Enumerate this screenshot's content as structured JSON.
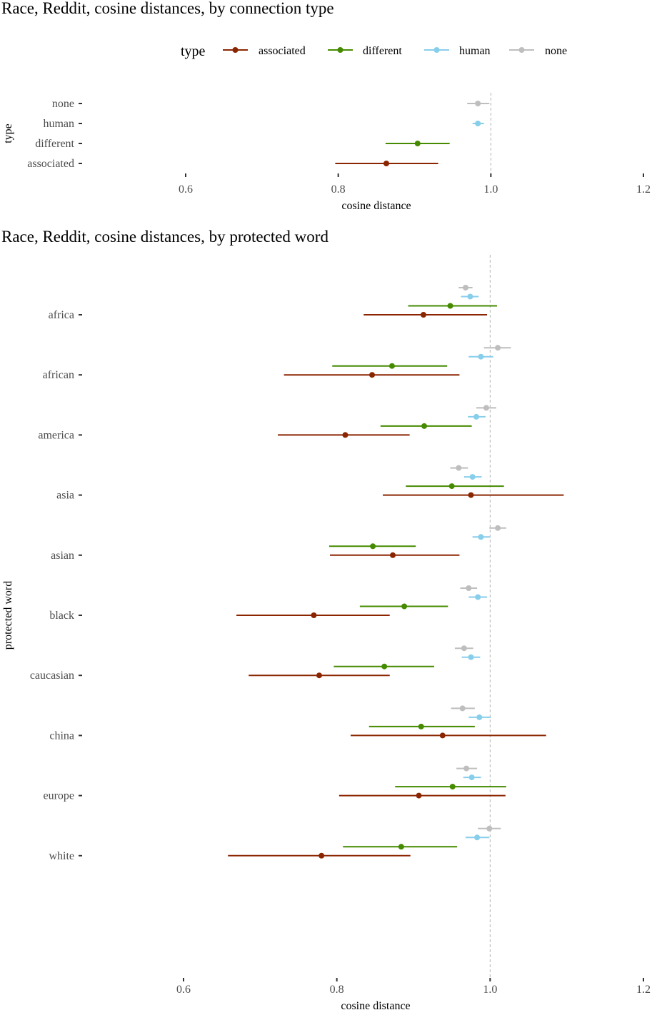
{
  "colors": {
    "associated": "#8B2500",
    "different": "#458B00",
    "human": "#87CEEB",
    "none": "#BEBEBE"
  },
  "chart_data": [
    {
      "type": "errorbar",
      "title": "Race, Reddit,  cosine distances, by connection type",
      "xlabel": "cosine distance",
      "ylabel": "type",
      "xlim": [
        0.6,
        1.2
      ],
      "xticks": [
        "0.6",
        "0.8",
        "1.0",
        "1.2"
      ],
      "reference_line": 1.0,
      "legend": {
        "title": "type",
        "position": "top",
        "entries": [
          "associated",
          "different",
          "human",
          "none"
        ]
      },
      "categories": [
        "none",
        "human",
        "different",
        "associated"
      ],
      "points": [
        {
          "category": "none",
          "series": "none",
          "mean": 0.983,
          "low": 0.969,
          "high": 0.998
        },
        {
          "category": "human",
          "series": "human",
          "mean": 0.983,
          "low": 0.976,
          "high": 0.991
        },
        {
          "category": "different",
          "series": "different",
          "mean": 0.904,
          "low": 0.862,
          "high": 0.946
        },
        {
          "category": "associated",
          "series": "associated",
          "mean": 0.863,
          "low": 0.796,
          "high": 0.931
        }
      ]
    },
    {
      "type": "errorbar",
      "title": "Race, Reddit, cosine distances, by protected word",
      "xlabel": "cosine distance",
      "ylabel": "protected word",
      "xlim": [
        0.6,
        1.2
      ],
      "xticks": [
        "0.6",
        "0.8",
        "1.0",
        "1.2"
      ],
      "reference_line": 1.0,
      "categories": [
        "africa",
        "african",
        "america",
        "asia",
        "asian",
        "black",
        "caucasian",
        "china",
        "europe",
        "white"
      ],
      "points": [
        {
          "category": "africa",
          "series": "none",
          "mean": 0.968,
          "low": 0.959,
          "high": 0.977
        },
        {
          "category": "africa",
          "series": "human",
          "mean": 0.974,
          "low": 0.962,
          "high": 0.985
        },
        {
          "category": "africa",
          "series": "different",
          "mean": 0.948,
          "low": 0.893,
          "high": 1.009
        },
        {
          "category": "africa",
          "series": "associated",
          "mean": 0.913,
          "low": 0.835,
          "high": 0.996
        },
        {
          "category": "african",
          "series": "none",
          "mean": 1.01,
          "low": 0.992,
          "high": 1.027
        },
        {
          "category": "african",
          "series": "human",
          "mean": 0.988,
          "low": 0.972,
          "high": 1.004
        },
        {
          "category": "african",
          "series": "different",
          "mean": 0.872,
          "low": 0.794,
          "high": 0.944
        },
        {
          "category": "african",
          "series": "associated",
          "mean": 0.846,
          "low": 0.731,
          "high": 0.96
        },
        {
          "category": "america",
          "series": "none",
          "mean": 0.995,
          "low": 0.982,
          "high": 1.008
        },
        {
          "category": "america",
          "series": "human",
          "mean": 0.982,
          "low": 0.971,
          "high": 0.994
        },
        {
          "category": "america",
          "series": "different",
          "mean": 0.914,
          "low": 0.857,
          "high": 0.976
        },
        {
          "category": "america",
          "series": "associated",
          "mean": 0.811,
          "low": 0.723,
          "high": 0.895
        },
        {
          "category": "asia",
          "series": "none",
          "mean": 0.959,
          "low": 0.948,
          "high": 0.971
        },
        {
          "category": "asia",
          "series": "human",
          "mean": 0.977,
          "low": 0.966,
          "high": 0.989
        },
        {
          "category": "asia",
          "series": "different",
          "mean": 0.95,
          "low": 0.89,
          "high": 1.018
        },
        {
          "category": "asia",
          "series": "associated",
          "mean": 0.975,
          "low": 0.86,
          "high": 1.096
        },
        {
          "category": "asian",
          "series": "none",
          "mean": 1.01,
          "low": 0.999,
          "high": 1.021
        },
        {
          "category": "asian",
          "series": "human",
          "mean": 0.988,
          "low": 0.977,
          "high": 1.0
        },
        {
          "category": "asian",
          "series": "different",
          "mean": 0.847,
          "low": 0.79,
          "high": 0.903
        },
        {
          "category": "asian",
          "series": "associated",
          "mean": 0.873,
          "low": 0.791,
          "high": 0.96
        },
        {
          "category": "black",
          "series": "none",
          "mean": 0.972,
          "low": 0.961,
          "high": 0.983
        },
        {
          "category": "black",
          "series": "human",
          "mean": 0.984,
          "low": 0.972,
          "high": 0.996
        },
        {
          "category": "black",
          "series": "different",
          "mean": 0.888,
          "low": 0.83,
          "high": 0.945
        },
        {
          "category": "black",
          "series": "associated",
          "mean": 0.77,
          "low": 0.669,
          "high": 0.869
        },
        {
          "category": "caucasian",
          "series": "none",
          "mean": 0.966,
          "low": 0.954,
          "high": 0.978
        },
        {
          "category": "caucasian",
          "series": "human",
          "mean": 0.975,
          "low": 0.963,
          "high": 0.987
        },
        {
          "category": "caucasian",
          "series": "different",
          "mean": 0.862,
          "low": 0.796,
          "high": 0.927
        },
        {
          "category": "caucasian",
          "series": "associated",
          "mean": 0.777,
          "low": 0.685,
          "high": 0.869
        },
        {
          "category": "china",
          "series": "none",
          "mean": 0.964,
          "low": 0.949,
          "high": 0.98
        },
        {
          "category": "china",
          "series": "human",
          "mean": 0.986,
          "low": 0.972,
          "high": 1.001
        },
        {
          "category": "china",
          "series": "different",
          "mean": 0.91,
          "low": 0.842,
          "high": 0.98
        },
        {
          "category": "china",
          "series": "associated",
          "mean": 0.938,
          "low": 0.818,
          "high": 1.073
        },
        {
          "category": "europe",
          "series": "none",
          "mean": 0.969,
          "low": 0.956,
          "high": 0.983
        },
        {
          "category": "europe",
          "series": "human",
          "mean": 0.976,
          "low": 0.965,
          "high": 0.988
        },
        {
          "category": "europe",
          "series": "different",
          "mean": 0.951,
          "low": 0.876,
          "high": 1.021
        },
        {
          "category": "europe",
          "series": "associated",
          "mean": 0.907,
          "low": 0.803,
          "high": 1.02
        },
        {
          "category": "white",
          "series": "none",
          "mean": 0.999,
          "low": 0.984,
          "high": 1.014
        },
        {
          "category": "white",
          "series": "human",
          "mean": 0.983,
          "low": 0.968,
          "high": 0.999
        },
        {
          "category": "white",
          "series": "different",
          "mean": 0.884,
          "low": 0.808,
          "high": 0.957
        },
        {
          "category": "white",
          "series": "associated",
          "mean": 0.78,
          "low": 0.658,
          "high": 0.896
        }
      ]
    }
  ]
}
